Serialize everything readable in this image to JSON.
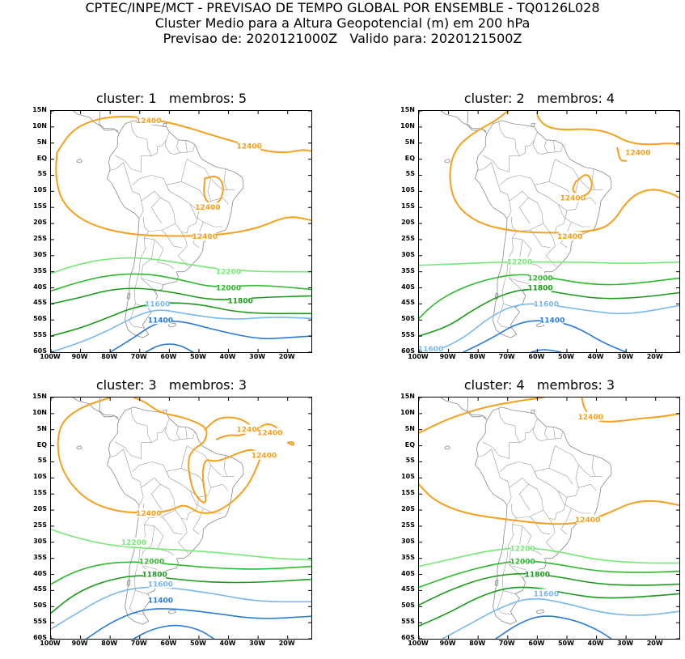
{
  "header": {
    "line1": "CPTEC/INPE/MCT - PREVISAO DE TEMPO GLOBAL POR ENSEMBLE - TQ0126L028",
    "line2": "Cluster Medio para a Altura Geopotencial (m) em 200 hPa",
    "line3": "Previsao de: 2020121000Z   Valido para: 2020121500Z"
  },
  "axes": {
    "lat_labels": [
      "15N",
      "10N",
      "5N",
      "EQ",
      "5S",
      "10S",
      "15S",
      "20S",
      "25S",
      "30S",
      "35S",
      "40S",
      "45S",
      "50S",
      "55S",
      "60S"
    ],
    "lon_labels": [
      "100W",
      "90W",
      "80W",
      "70W",
      "60W",
      "50W",
      "40W",
      "30W",
      "20W"
    ],
    "lon_range": [
      -100,
      -12
    ],
    "lat_range": [
      -60,
      15
    ]
  },
  "contour_colors": {
    "12400": "#f5a01e",
    "12200": "#78e878",
    "12000": "#2eb82e",
    "11800": "#1a9a1a",
    "11600": "#7ab8f0",
    "11400": "#2a7ad8"
  },
  "panels": [
    {
      "title": "cluster: 1   membros: 5",
      "labels": [
        {
          "text": "12400",
          "lon": -67,
          "lat": 12,
          "color": "12400"
        },
        {
          "text": "12400",
          "lon": -33,
          "lat": 4,
          "color": "12400"
        },
        {
          "text": "12400",
          "lon": -47,
          "lat": -15,
          "color": "12400"
        },
        {
          "text": "12400",
          "lon": -48,
          "lat": -24,
          "color": "12400"
        },
        {
          "text": "12200",
          "lon": -40,
          "lat": -35,
          "color": "12200"
        },
        {
          "text": "12000",
          "lon": -40,
          "lat": -40,
          "color": "12000"
        },
        {
          "text": "11800",
          "lon": -36,
          "lat": -44,
          "color": "11800"
        },
        {
          "text": "11600",
          "lon": -64,
          "lat": -45,
          "color": "11600"
        },
        {
          "text": "11400",
          "lon": -63,
          "lat": -50,
          "color": "11400"
        }
      ]
    },
    {
      "title": "cluster: 2   membros: 4",
      "labels": [
        {
          "text": "12400",
          "lon": -26,
          "lat": 2,
          "color": "12400"
        },
        {
          "text": "12400",
          "lon": -48,
          "lat": -12,
          "color": "12400"
        },
        {
          "text": "12400",
          "lon": -49,
          "lat": -24,
          "color": "12400"
        },
        {
          "text": "12200",
          "lon": -66,
          "lat": -32,
          "color": "12200"
        },
        {
          "text": "12000",
          "lon": -59,
          "lat": -37,
          "color": "12000"
        },
        {
          "text": "11800",
          "lon": -59,
          "lat": -40,
          "color": "11800"
        },
        {
          "text": "11600",
          "lon": -57,
          "lat": -45,
          "color": "11600"
        },
        {
          "text": "11400",
          "lon": -55,
          "lat": -50,
          "color": "11400"
        },
        {
          "text": "11600",
          "lon": -96,
          "lat": -59,
          "color": "11600"
        }
      ]
    },
    {
      "title": "cluster: 3   membros: 3",
      "labels": [
        {
          "text": "12400",
          "lon": -33,
          "lat": 5,
          "color": "12400"
        },
        {
          "text": "12400",
          "lon": -26,
          "lat": 4,
          "color": "12400"
        },
        {
          "text": "12400",
          "lon": -28,
          "lat": -3,
          "color": "12400"
        },
        {
          "text": "12400",
          "lon": -67,
          "lat": -21,
          "color": "12400"
        },
        {
          "text": "12200",
          "lon": -72,
          "lat": -30,
          "color": "12200"
        },
        {
          "text": "12000",
          "lon": -66,
          "lat": -36,
          "color": "12000"
        },
        {
          "text": "11800",
          "lon": -65,
          "lat": -40,
          "color": "11800"
        },
        {
          "text": "11600",
          "lon": -63,
          "lat": -43,
          "color": "11600"
        },
        {
          "text": "11400",
          "lon": -63,
          "lat": -48,
          "color": "11400"
        }
      ]
    },
    {
      "title": "cluster: 4   membros: 3",
      "labels": [
        {
          "text": "12400",
          "lon": -42,
          "lat": 9,
          "color": "12400"
        },
        {
          "text": "12400",
          "lon": -43,
          "lat": -23,
          "color": "12400"
        },
        {
          "text": "12200",
          "lon": -65,
          "lat": -32,
          "color": "12200"
        },
        {
          "text": "12000",
          "lon": -65,
          "lat": -36,
          "color": "12000"
        },
        {
          "text": "11800",
          "lon": -60,
          "lat": -40,
          "color": "11800"
        },
        {
          "text": "11600",
          "lon": -57,
          "lat": -46,
          "color": "11600"
        }
      ]
    }
  ]
}
